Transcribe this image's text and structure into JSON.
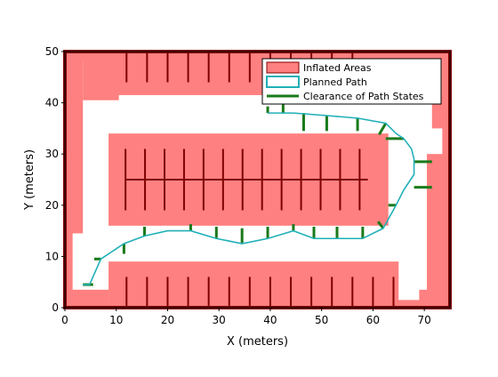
{
  "chart_data": {
    "type": "map",
    "title": "",
    "xlabel": "X (meters)",
    "ylabel": "Y (meters)",
    "xlim": [
      0,
      75
    ],
    "ylim": [
      0,
      50
    ],
    "xticks": [
      0,
      10,
      20,
      30,
      40,
      50,
      60,
      70
    ],
    "yticks": [
      0,
      10,
      20,
      30,
      40,
      50
    ],
    "grid": false,
    "legend_position": "top-right",
    "legend": [
      {
        "label": "Inflated Areas",
        "kind": "patch"
      },
      {
        "label": "Planned Path",
        "kind": "line"
      },
      {
        "label": "Clearance of Path States",
        "kind": "line"
      }
    ],
    "colors": {
      "inflated": "#ff8080",
      "obstacle": "#800000",
      "path": "#20b0b8",
      "clearance": "#1a7a1a"
    },
    "inflated_areas": [
      {
        "x": [
          0,
          75
        ],
        "y": [
          48.5,
          50
        ]
      },
      {
        "x": [
          0,
          75
        ],
        "y": [
          0,
          1.5
        ]
      },
      {
        "x": [
          0,
          1.5
        ],
        "y": [
          0,
          50
        ]
      },
      {
        "x": [
          73.5,
          75
        ],
        "y": [
          0,
          50
        ]
      },
      {
        "x": [
          3.5,
          10.5
        ],
        "y": [
          40.5,
          50
        ]
      },
      {
        "x": [
          9,
          73.5
        ],
        "y": [
          41.5,
          50
        ]
      },
      {
        "x": [
          0,
          3.5
        ],
        "y": [
          14.5,
          50
        ]
      },
      {
        "x": [
          0,
          8.5
        ],
        "y": [
          0,
          3.5
        ]
      },
      {
        "x": [
          8.5,
          65
        ],
        "y": [
          0,
          9
        ]
      },
      {
        "x": [
          69,
          75
        ],
        "y": [
          0,
          3.5
        ]
      },
      {
        "x": [
          70.5,
          75
        ],
        "y": [
          0,
          30
        ]
      },
      {
        "x": [
          71.5,
          75
        ],
        "y": [
          35,
          41.5
        ]
      },
      {
        "x": [
          8.5,
          63
        ],
        "y": [
          16,
          34
        ]
      }
    ],
    "obstacle_outline": {
      "x": [
        0,
        75
      ],
      "y": [
        0,
        50
      ]
    },
    "obstacle_lines": [
      {
        "x1": 11.8,
        "y1": 25,
        "x2": 59,
        "y2": 25
      },
      {
        "x1": 12,
        "y1": 50,
        "x2": 12,
        "y2": 44
      },
      {
        "x1": 16,
        "y1": 50,
        "x2": 16,
        "y2": 44
      },
      {
        "x1": 20,
        "y1": 50,
        "x2": 20,
        "y2": 44
      },
      {
        "x1": 24,
        "y1": 50,
        "x2": 24,
        "y2": 44
      },
      {
        "x1": 28,
        "y1": 50,
        "x2": 28,
        "y2": 44
      },
      {
        "x1": 32,
        "y1": 50,
        "x2": 32,
        "y2": 44
      },
      {
        "x1": 36,
        "y1": 50,
        "x2": 36,
        "y2": 44
      },
      {
        "x1": 40,
        "y1": 50,
        "x2": 40,
        "y2": 44
      },
      {
        "x1": 44,
        "y1": 50,
        "x2": 44,
        "y2": 44
      },
      {
        "x1": 48,
        "y1": 50,
        "x2": 48,
        "y2": 44
      },
      {
        "x1": 52,
        "y1": 50,
        "x2": 52,
        "y2": 44
      },
      {
        "x1": 56,
        "y1": 50,
        "x2": 56,
        "y2": 44
      },
      {
        "x1": 12,
        "y1": 0,
        "x2": 12,
        "y2": 6
      },
      {
        "x1": 16,
        "y1": 0,
        "x2": 16,
        "y2": 6
      },
      {
        "x1": 20,
        "y1": 0,
        "x2": 20,
        "y2": 6
      },
      {
        "x1": 24,
        "y1": 0,
        "x2": 24,
        "y2": 6
      },
      {
        "x1": 28,
        "y1": 0,
        "x2": 28,
        "y2": 6
      },
      {
        "x1": 32,
        "y1": 0,
        "x2": 32,
        "y2": 6
      },
      {
        "x1": 36,
        "y1": 0,
        "x2": 36,
        "y2": 6
      },
      {
        "x1": 40,
        "y1": 0,
        "x2": 40,
        "y2": 6
      },
      {
        "x1": 44,
        "y1": 0,
        "x2": 44,
        "y2": 6
      },
      {
        "x1": 48,
        "y1": 0,
        "x2": 48,
        "y2": 6
      },
      {
        "x1": 52,
        "y1": 0,
        "x2": 52,
        "y2": 6
      },
      {
        "x1": 56,
        "y1": 0,
        "x2": 56,
        "y2": 6
      },
      {
        "x1": 60,
        "y1": 0,
        "x2": 60,
        "y2": 6
      },
      {
        "x1": 64,
        "y1": 0,
        "x2": 64,
        "y2": 6
      },
      {
        "x1": 11.8,
        "y1": 19,
        "x2": 11.8,
        "y2": 31
      },
      {
        "x1": 15.6,
        "y1": 19,
        "x2": 15.6,
        "y2": 31
      },
      {
        "x1": 19.4,
        "y1": 19,
        "x2": 19.4,
        "y2": 31
      },
      {
        "x1": 23.2,
        "y1": 19,
        "x2": 23.2,
        "y2": 31
      },
      {
        "x1": 27,
        "y1": 19,
        "x2": 27,
        "y2": 31
      },
      {
        "x1": 30.8,
        "y1": 19,
        "x2": 30.8,
        "y2": 31
      },
      {
        "x1": 34.6,
        "y1": 19,
        "x2": 34.6,
        "y2": 31
      },
      {
        "x1": 38.4,
        "y1": 19,
        "x2": 38.4,
        "y2": 31
      },
      {
        "x1": 42.2,
        "y1": 19,
        "x2": 42.2,
        "y2": 31
      },
      {
        "x1": 46,
        "y1": 19,
        "x2": 46,
        "y2": 31
      },
      {
        "x1": 49.8,
        "y1": 19,
        "x2": 49.8,
        "y2": 31
      },
      {
        "x1": 53.6,
        "y1": 19,
        "x2": 53.6,
        "y2": 31
      },
      {
        "x1": 57.4,
        "y1": 19,
        "x2": 57.4,
        "y2": 31
      }
    ],
    "planned_path": {
      "x": [
        3.5,
        4.8,
        7.0,
        11.5,
        15.5,
        20.0,
        24.5,
        29.5,
        34.5,
        39.5,
        44.5,
        48.5,
        53.0,
        58.0,
        62.0,
        64.5,
        66.0,
        68.0,
        68.0,
        67.5,
        66.0,
        64.5,
        62.5,
        57.0,
        51.0,
        44.5,
        39.5
      ],
      "y": [
        4.5,
        4.5,
        9.5,
        12.5,
        14.0,
        15.0,
        15.0,
        13.5,
        12.5,
        13.5,
        15.0,
        13.5,
        13.5,
        13.5,
        15.5,
        20.0,
        23.0,
        26.0,
        29.0,
        31.0,
        33.0,
        34.0,
        36.0,
        37.0,
        37.5,
        38.0,
        38.0
      ]
    },
    "clearance_segments": [
      {
        "x1": 3.5,
        "y1": 4.5,
        "x2": 5.5,
        "y2": 4.5
      },
      {
        "x1": 7.0,
        "y1": 9.5,
        "x2": 5.7,
        "y2": 9.5
      },
      {
        "x1": 11.5,
        "y1": 12.5,
        "x2": 11.5,
        "y2": 10.5
      },
      {
        "x1": 15.5,
        "y1": 14.0,
        "x2": 15.5,
        "y2": 15.8
      },
      {
        "x1": 24.5,
        "y1": 15.0,
        "x2": 24.5,
        "y2": 16.3
      },
      {
        "x1": 29.5,
        "y1": 13.5,
        "x2": 29.5,
        "y2": 15.8
      },
      {
        "x1": 34.5,
        "y1": 12.5,
        "x2": 34.5,
        "y2": 15.5
      },
      {
        "x1": 39.5,
        "y1": 13.5,
        "x2": 39.5,
        "y2": 15.8
      },
      {
        "x1": 44.5,
        "y1": 15.0,
        "x2": 44.5,
        "y2": 16.3
      },
      {
        "x1": 48.5,
        "y1": 13.5,
        "x2": 48.5,
        "y2": 15.8
      },
      {
        "x1": 53.0,
        "y1": 13.5,
        "x2": 53.0,
        "y2": 15.8
      },
      {
        "x1": 58.0,
        "y1": 13.5,
        "x2": 58.0,
        "y2": 15.8
      },
      {
        "x1": 62.0,
        "y1": 15.5,
        "x2": 61.0,
        "y2": 16.8
      },
      {
        "x1": 64.5,
        "y1": 20.0,
        "x2": 63.0,
        "y2": 20.0
      },
      {
        "x1": 68.0,
        "y1": 23.5,
        "x2": 71.5,
        "y2": 23.5
      },
      {
        "x1": 68.0,
        "y1": 28.5,
        "x2": 71.5,
        "y2": 28.5
      },
      {
        "x1": 66.0,
        "y1": 33.0,
        "x2": 62.5,
        "y2": 33.0
      },
      {
        "x1": 62.5,
        "y1": 36.0,
        "x2": 61.2,
        "y2": 33.8
      },
      {
        "x1": 57.0,
        "y1": 37.0,
        "x2": 57.0,
        "y2": 34.5
      },
      {
        "x1": 51.0,
        "y1": 37.5,
        "x2": 51.0,
        "y2": 34.5
      },
      {
        "x1": 46.5,
        "y1": 38.0,
        "x2": 46.5,
        "y2": 34.5
      },
      {
        "x1": 42.5,
        "y1": 38.0,
        "x2": 42.5,
        "y2": 40.0
      },
      {
        "x1": 39.5,
        "y1": 38.0,
        "x2": 39.5,
        "y2": 39.3
      }
    ]
  }
}
